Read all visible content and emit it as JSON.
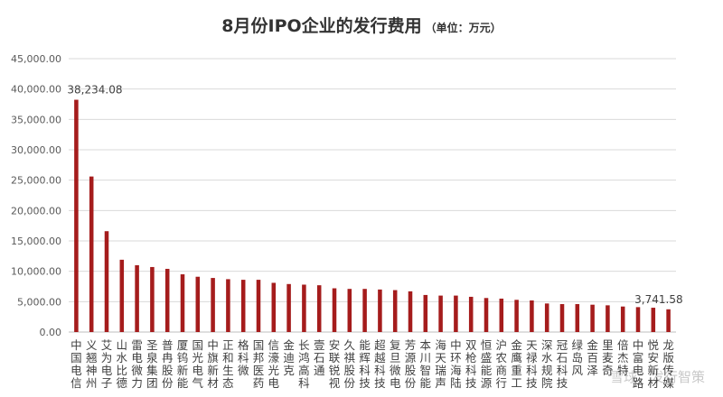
{
  "chart_data": {
    "type": "bar",
    "title": "8月份IPO企业的发行费用",
    "unit_label": "（单位：万元）",
    "ylim": [
      0,
      45000
    ],
    "yticks": [
      "0.00",
      "5,000.00",
      "10,000.00",
      "15,000.00",
      "20,000.00",
      "25,000.00",
      "30,000.00",
      "35,000.00",
      "40,000.00",
      "45,000.00"
    ],
    "grid": true,
    "bar_color": "#a51c1c",
    "categories": [
      "中国电信",
      "义翘神州",
      "艾为电子",
      "山水比德",
      "雷电微力",
      "圣泉集团",
      "普冉股份",
      "厦钨新能",
      "国光电气",
      "中旗新材",
      "正和生态",
      "格科微",
      "国邦医药",
      "信濠光电",
      "金迪克",
      "长鸿高科",
      "壹石通",
      "安联锐视",
      "久祺股份",
      "能辉科技",
      "超越科技",
      "复旦微电",
      "芳源股份",
      "本川智能",
      "海天瑞声",
      "中环海陆",
      "双枪科技",
      "恒盛能源",
      "沪农商行",
      "金鹰重工",
      "天禄科技",
      "深水规院",
      "冠石科技",
      "绿岛风",
      "金百泽",
      "里麦奇",
      "倍杰特",
      "中富电路",
      "悦安新材",
      "龙版传媒"
    ],
    "values": [
      38234.08,
      25600,
      16600,
      11900,
      11000,
      10700,
      10400,
      9500,
      9100,
      8900,
      8700,
      8600,
      8600,
      8100,
      7900,
      7800,
      7700,
      7200,
      7100,
      7100,
      7000,
      6900,
      6700,
      6100,
      6000,
      6000,
      5800,
      5600,
      5500,
      5300,
      5200,
      4700,
      4600,
      4600,
      4500,
      4400,
      4200,
      4100,
      4000,
      3741.58
    ],
    "data_labels": [
      {
        "index": 0,
        "text": "38,234.08"
      },
      {
        "index": 39,
        "text": "3,741.58"
      }
    ]
  },
  "watermark": "雪球：发行智策"
}
